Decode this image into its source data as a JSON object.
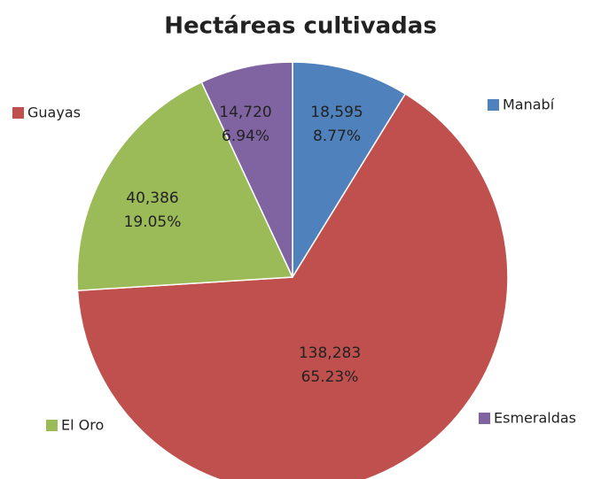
{
  "chart_data": {
    "type": "pie",
    "title": "Hectáreas cultivadas",
    "categories": [
      "Manabí",
      "Guayas",
      "El Oro",
      "Esmeraldas"
    ],
    "values": [
      18595,
      138283,
      40386,
      14720
    ],
    "value_labels": [
      "18,595",
      "138,283",
      "40,386",
      "14,720"
    ],
    "percent_labels": [
      "8.77%",
      "65.23%",
      "19.05%",
      "6.94%"
    ],
    "colors": [
      "#4f81bd",
      "#c0504d",
      "#9bbb59",
      "#8064a2"
    ]
  }
}
